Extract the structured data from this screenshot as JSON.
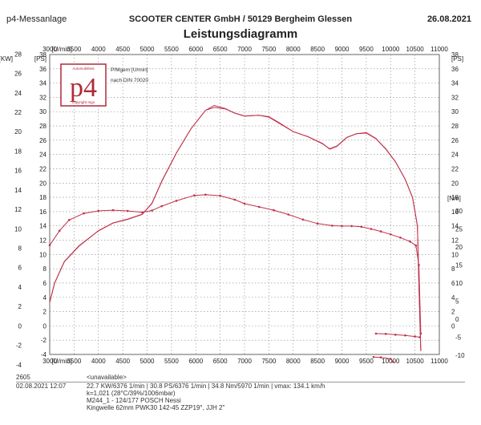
{
  "header": {
    "left": "p4-Messanlage",
    "center": "SCOOTER CENTER GmbH / 50129 Bergheim Glessen",
    "right": "26.08.2021",
    "title": "Leistungsdiagramm"
  },
  "logo": {
    "text": "p4",
    "top_text": "Automobiltest",
    "bottom_text": "copyright Ingo"
  },
  "annotations": [
    "P/Mgem [U/min]",
    "nach DIN 70020"
  ],
  "chart_data": {
    "type": "line",
    "title": "Leistungsdiagramm",
    "x_unit": "[U/min]",
    "xlim": [
      3000,
      11000
    ],
    "x_ticks": [
      3000,
      3500,
      4000,
      4500,
      5000,
      5500,
      6000,
      6500,
      7000,
      7500,
      8000,
      8500,
      9000,
      9500,
      10000,
      10500,
      11000
    ],
    "y_left_units": [
      "[KW]",
      "[PS]"
    ],
    "y_left_kw_ticks": [
      -4,
      -2,
      0,
      2,
      4,
      6,
      8,
      10,
      12,
      14,
      16,
      18,
      20,
      22,
      24,
      26,
      28
    ],
    "y_left_ps_ticks": [
      -4,
      -2,
      0,
      2,
      4,
      6,
      8,
      10,
      12,
      14,
      16,
      18,
      20,
      22,
      24,
      26,
      28,
      30,
      32,
      34,
      36,
      38
    ],
    "ylim_ps": [
      -4,
      38
    ],
    "y_right_ps_unit": "[PS]",
    "y_right_ps_ticks": [
      0,
      2,
      4,
      6,
      8,
      10,
      12,
      14,
      16,
      18,
      20,
      22,
      24,
      26,
      28,
      30,
      32,
      34,
      36,
      38
    ],
    "y_right_nm_unit": "[Nm]",
    "y_right_nm_ticks": [
      -10,
      -5,
      0,
      5,
      10,
      15,
      20,
      25,
      30
    ],
    "series": [
      {
        "axis": "ps",
        "color": "#c0304a",
        "x": [
          3000,
          3100,
          3300,
          3600,
          4000,
          4300,
          4600,
          4900,
          5100,
          5300,
          5600,
          5900,
          6200,
          6376,
          6600,
          6800,
          7000,
          7300,
          7500,
          7700,
          8000,
          8300,
          8600,
          8750,
          8900,
          9100,
          9300,
          9500,
          9700,
          9900,
          10100,
          10300,
          10450,
          10550,
          10580,
          10620
        ],
        "values": [
          3.3,
          6.0,
          9.0,
          11.2,
          13.3,
          14.4,
          14.9,
          15.6,
          17.2,
          20.2,
          24.2,
          27.6,
          30.2,
          30.6,
          30.4,
          29.8,
          29.4,
          29.5,
          29.3,
          28.5,
          27.2,
          26.5,
          25.5,
          24.8,
          25.2,
          26.4,
          26.9,
          27.0,
          26.2,
          24.8,
          23.0,
          20.5,
          18.0,
          14.0,
          6.0,
          -3.5
        ]
      },
      {
        "axis": "kw",
        "color": "#c0304a",
        "x": [
          3000,
          3100,
          3300,
          3600,
          4000,
          4300,
          4600,
          4900,
          5100,
          5300,
          5600,
          5900,
          6200,
          6376,
          6600,
          6800,
          7000,
          7300,
          7500,
          7700,
          8000,
          8300,
          8600,
          8750,
          8900,
          9100,
          9300,
          9500,
          9700,
          9900,
          10100,
          10300,
          10450,
          10550,
          10580,
          10620
        ],
        "values": [
          2.4,
          4.4,
          6.6,
          8.2,
          9.8,
          10.6,
          11.0,
          11.5,
          12.6,
          14.9,
          17.8,
          20.3,
          22.2,
          22.7,
          22.4,
          21.9,
          21.6,
          21.7,
          21.5,
          20.9,
          20.0,
          19.5,
          18.8,
          18.2,
          18.5,
          19.4,
          19.8,
          19.9,
          19.3,
          18.2,
          16.9,
          15.1,
          13.2,
          10.3,
          4.4,
          -2.6
        ]
      },
      {
        "axis": "nm",
        "color": "#c0304a",
        "x": [
          3000,
          3200,
          3400,
          3700,
          4000,
          4300,
          4600,
          4900,
          5100,
          5300,
          5600,
          5970,
          6200,
          6500,
          6800,
          7000,
          7300,
          7600,
          7900,
          8200,
          8500,
          8800,
          9000,
          9200,
          9400,
          9600,
          9800,
          10000,
          10200,
          10400,
          10520,
          10580,
          10620
        ],
        "values": [
          20.5,
          24.5,
          27.5,
          29.3,
          30.0,
          30.2,
          30.0,
          29.6,
          30.1,
          31.3,
          32.8,
          34.3,
          34.5,
          34.2,
          33.1,
          32.0,
          31.1,
          30.2,
          29.0,
          27.6,
          26.5,
          25.9,
          25.8,
          25.8,
          25.6,
          25.0,
          24.3,
          23.5,
          22.6,
          21.5,
          20.4,
          15.0,
          -4.0
        ]
      },
      {
        "axis": "nm",
        "color": "#c0304a",
        "x": [
          9700,
          9900,
          10100,
          10300,
          10500,
          10600
        ],
        "values": [
          -4.0,
          -4.1,
          -4.3,
          -4.5,
          -4.8,
          -5.0
        ]
      },
      {
        "axis": "nm",
        "color": "#c0304a",
        "x": [
          9650,
          9800,
          10000,
          10050
        ],
        "values": [
          -10.5,
          -10.6,
          -11.0,
          -11.8
        ]
      }
    ]
  },
  "footer": {
    "id": "2605",
    "date": "02.08.2021  12:07",
    "unavailable": "<unavailable>",
    "line1": "22.7 KW/6376 1/min  |  30.8 PS/6376 1/min  |  34.8 Nm/5970 1/min  |  vmax: 134.1 km/h",
    "line2": "k=1,021 (28°C/39%/1006mbar)",
    "line3": "M244_1 - 124/177 POSCH Nessi",
    "line4": "Kingwelle 62mm PWK30 142-45 ZZP19°, JJH 2\""
  }
}
